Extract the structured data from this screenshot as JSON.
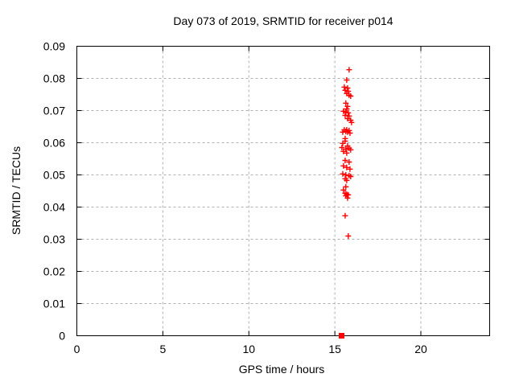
{
  "window": {
    "background": "#ffffff"
  },
  "chart_data": {
    "type": "scatter",
    "title": "Day 073 of 2019, SRMTID for receiver p014",
    "xlabel": "GPS time / hours",
    "ylabel": "SRMTID / TECUs",
    "xlim": [
      0,
      24
    ],
    "ylim": [
      0,
      0.09
    ],
    "xtick_values": [
      0,
      5,
      10,
      15,
      20
    ],
    "xtick_labels": [
      "0",
      "5",
      "10",
      "15",
      "20"
    ],
    "ytick_values": [
      0,
      0.01,
      0.02,
      0.03,
      0.04,
      0.05,
      0.06,
      0.07,
      0.08,
      0.09
    ],
    "ytick_labels": [
      "0",
      "0.01",
      "0.02",
      "0.03",
      "0.04",
      "0.05",
      "0.06",
      "0.07",
      "0.08",
      "0.09"
    ],
    "grid": true,
    "grid_color": "#b0b0b0",
    "axis_color": "#000000",
    "text_color": "#000000",
    "legend_position": "none",
    "series": [
      {
        "name": "SRMTID measurements",
        "marker": "plus",
        "color": "#ff0000",
        "points": [
          [
            15.83,
            0.0827
          ],
          [
            15.69,
            0.0795
          ],
          [
            15.55,
            0.0773
          ],
          [
            15.74,
            0.077
          ],
          [
            15.6,
            0.0763
          ],
          [
            15.78,
            0.076
          ],
          [
            15.69,
            0.0753
          ],
          [
            15.83,
            0.0748
          ],
          [
            15.92,
            0.0745
          ],
          [
            15.64,
            0.0723
          ],
          [
            15.74,
            0.0713
          ],
          [
            15.69,
            0.0705
          ],
          [
            15.5,
            0.0698
          ],
          [
            15.64,
            0.0695
          ],
          [
            15.78,
            0.0693
          ],
          [
            15.6,
            0.0685
          ],
          [
            15.83,
            0.0683
          ],
          [
            15.74,
            0.0675
          ],
          [
            15.92,
            0.067
          ],
          [
            15.97,
            0.0663
          ],
          [
            15.55,
            0.064
          ],
          [
            15.69,
            0.064
          ],
          [
            15.83,
            0.0638
          ],
          [
            15.64,
            0.0635
          ],
          [
            15.46,
            0.0633
          ],
          [
            15.74,
            0.0633
          ],
          [
            15.88,
            0.063
          ],
          [
            15.6,
            0.0613
          ],
          [
            15.6,
            0.0605
          ],
          [
            15.46,
            0.0598
          ],
          [
            15.74,
            0.059
          ],
          [
            15.41,
            0.0585
          ],
          [
            15.83,
            0.0583
          ],
          [
            15.64,
            0.058
          ],
          [
            15.92,
            0.0578
          ],
          [
            15.5,
            0.0573
          ],
          [
            15.69,
            0.0568
          ],
          [
            15.6,
            0.0545
          ],
          [
            15.83,
            0.054
          ],
          [
            15.5,
            0.0528
          ],
          [
            15.69,
            0.0523
          ],
          [
            15.88,
            0.0518
          ],
          [
            15.46,
            0.0503
          ],
          [
            15.64,
            0.05
          ],
          [
            15.83,
            0.0498
          ],
          [
            15.92,
            0.0495
          ],
          [
            15.6,
            0.0488
          ],
          [
            15.69,
            0.0483
          ],
          [
            15.64,
            0.0463
          ],
          [
            15.5,
            0.0453
          ],
          [
            15.6,
            0.0443
          ],
          [
            15.69,
            0.044
          ],
          [
            15.78,
            0.0438
          ],
          [
            15.64,
            0.0435
          ],
          [
            15.74,
            0.0428
          ],
          [
            15.6,
            0.0373
          ],
          [
            15.78,
            0.031
          ]
        ]
      },
      {
        "name": "zero-value marker",
        "marker": "filled-square",
        "color": "#ff0000",
        "points": [
          [
            15.39,
            0.0
          ]
        ]
      }
    ]
  }
}
